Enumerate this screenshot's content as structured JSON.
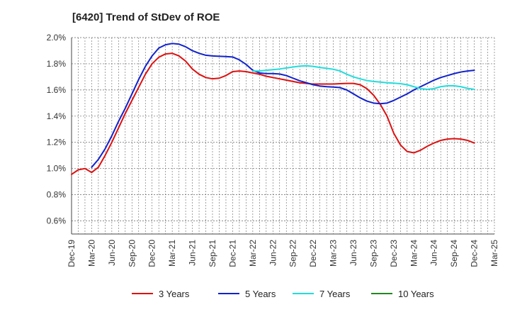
{
  "chart_data": {
    "type": "line",
    "title": "[6420]  Trend of StDev of ROE",
    "xlabel": "",
    "ylabel": "",
    "ylim": [
      0.5,
      2.0
    ],
    "y_ticks": [
      "2.0%",
      "1.8%",
      "1.6%",
      "1.4%",
      "1.2%",
      "1.0%",
      "0.8%",
      "0.6%"
    ],
    "y_tick_values": [
      2.0,
      1.8,
      1.6,
      1.4,
      1.2,
      1.0,
      0.8,
      0.6
    ],
    "x_ticks": [
      "Dec-19",
      "Mar-20",
      "Jun-20",
      "Sep-20",
      "Dec-20",
      "Mar-21",
      "Jun-21",
      "Sep-21",
      "Dec-21",
      "Mar-22",
      "Jun-22",
      "Sep-22",
      "Dec-22",
      "Mar-23",
      "Jun-23",
      "Sep-23",
      "Dec-23",
      "Mar-24",
      "Jun-24",
      "Sep-24",
      "Dec-24",
      "Mar-25"
    ],
    "grid": true,
    "legend_position": "bottom",
    "series": [
      {
        "name": "3 Years",
        "color": "#dd1111",
        "x": [
          "Dec-19",
          "Jan-20",
          "Feb-20",
          "Mar-20",
          "Apr-20",
          "May-20",
          "Jun-20",
          "Jul-20",
          "Aug-20",
          "Sep-20",
          "Oct-20",
          "Nov-20",
          "Dec-20",
          "Jan-21",
          "Feb-21",
          "Mar-21",
          "Apr-21",
          "May-21",
          "Jun-21",
          "Jul-21",
          "Aug-21",
          "Sep-21",
          "Oct-21",
          "Nov-21",
          "Dec-21",
          "Jan-22",
          "Feb-22",
          "Mar-22",
          "Apr-22",
          "May-22",
          "Jun-22",
          "Jul-22",
          "Aug-22",
          "Sep-22",
          "Oct-22",
          "Nov-22",
          "Dec-22",
          "Jan-23",
          "Feb-23",
          "Mar-23",
          "Apr-23",
          "May-23",
          "Jun-23",
          "Jul-23",
          "Aug-23",
          "Sep-23",
          "Oct-23",
          "Nov-23",
          "Dec-23",
          "Jan-24",
          "Feb-24",
          "Mar-24",
          "Apr-24",
          "May-24",
          "Jun-24",
          "Jul-24",
          "Aug-24",
          "Sep-24",
          "Oct-24",
          "Nov-24",
          "Dec-24"
        ],
        "values": [
          0.955,
          0.99,
          1.0,
          0.97,
          1.01,
          1.1,
          1.2,
          1.31,
          1.42,
          1.52,
          1.62,
          1.72,
          1.8,
          1.85,
          1.875,
          1.88,
          1.86,
          1.82,
          1.76,
          1.72,
          1.695,
          1.685,
          1.69,
          1.71,
          1.74,
          1.745,
          1.74,
          1.73,
          1.72,
          1.705,
          1.695,
          1.685,
          1.675,
          1.665,
          1.655,
          1.65,
          1.645,
          1.645,
          1.645,
          1.645,
          1.648,
          1.65,
          1.65,
          1.64,
          1.61,
          1.56,
          1.49,
          1.4,
          1.27,
          1.18,
          1.13,
          1.12,
          1.14,
          1.17,
          1.195,
          1.215,
          1.225,
          1.228,
          1.225,
          1.215,
          1.195
        ]
      },
      {
        "name": "5 Years",
        "color": "#1122cc",
        "x": [
          "Mar-20",
          "Apr-20",
          "May-20",
          "Jun-20",
          "Jul-20",
          "Aug-20",
          "Sep-20",
          "Oct-20",
          "Nov-20",
          "Dec-20",
          "Jan-21",
          "Feb-21",
          "Mar-21",
          "Apr-21",
          "May-21",
          "Jun-21",
          "Jul-21",
          "Aug-21",
          "Sep-21",
          "Oct-21",
          "Nov-21",
          "Dec-21",
          "Jan-22",
          "Feb-22",
          "Mar-22",
          "Apr-22",
          "May-22",
          "Jun-22",
          "Jul-22",
          "Aug-22",
          "Sep-22",
          "Oct-22",
          "Nov-22",
          "Dec-22",
          "Jan-23",
          "Feb-23",
          "Mar-23",
          "Apr-23",
          "May-23",
          "Jun-23",
          "Jul-23",
          "Aug-23",
          "Sep-23",
          "Oct-23",
          "Nov-23",
          "Dec-23",
          "Jan-24",
          "Feb-24",
          "Mar-24",
          "Apr-24",
          "May-24",
          "Jun-24",
          "Jul-24",
          "Aug-24",
          "Sep-24",
          "Oct-24",
          "Nov-24",
          "Dec-24"
        ],
        "values": [
          1.01,
          1.07,
          1.15,
          1.25,
          1.36,
          1.46,
          1.57,
          1.68,
          1.78,
          1.86,
          1.92,
          1.945,
          1.955,
          1.95,
          1.93,
          1.9,
          1.88,
          1.865,
          1.86,
          1.857,
          1.855,
          1.852,
          1.83,
          1.795,
          1.75,
          1.73,
          1.725,
          1.725,
          1.722,
          1.71,
          1.69,
          1.67,
          1.655,
          1.64,
          1.63,
          1.625,
          1.622,
          1.618,
          1.6,
          1.57,
          1.54,
          1.515,
          1.5,
          1.495,
          1.5,
          1.52,
          1.545,
          1.57,
          1.6,
          1.625,
          1.65,
          1.675,
          1.695,
          1.71,
          1.725,
          1.737,
          1.745,
          1.75
        ]
      },
      {
        "name": "7 Years",
        "color": "#22dddd",
        "x": [
          "Mar-22",
          "Apr-22",
          "May-22",
          "Jun-22",
          "Jul-22",
          "Aug-22",
          "Sep-22",
          "Oct-22",
          "Nov-22",
          "Dec-22",
          "Jan-23",
          "Feb-23",
          "Mar-23",
          "Apr-23",
          "May-23",
          "Jun-23",
          "Jul-23",
          "Aug-23",
          "Sep-23",
          "Oct-23",
          "Nov-23",
          "Dec-23",
          "Jan-24",
          "Feb-24",
          "Mar-24",
          "Apr-24",
          "May-24",
          "Jun-24",
          "Jul-24",
          "Aug-24",
          "Sep-24",
          "Oct-24",
          "Nov-24",
          "Dec-24"
        ],
        "values": [
          1.745,
          1.745,
          1.75,
          1.755,
          1.76,
          1.768,
          1.775,
          1.782,
          1.785,
          1.78,
          1.772,
          1.765,
          1.758,
          1.745,
          1.72,
          1.7,
          1.685,
          1.672,
          1.665,
          1.66,
          1.655,
          1.652,
          1.648,
          1.64,
          1.625,
          1.61,
          1.605,
          1.61,
          1.625,
          1.632,
          1.632,
          1.625,
          1.612,
          1.605
        ]
      },
      {
        "name": "10 Years",
        "color": "#228822",
        "x": [],
        "values": []
      }
    ]
  }
}
